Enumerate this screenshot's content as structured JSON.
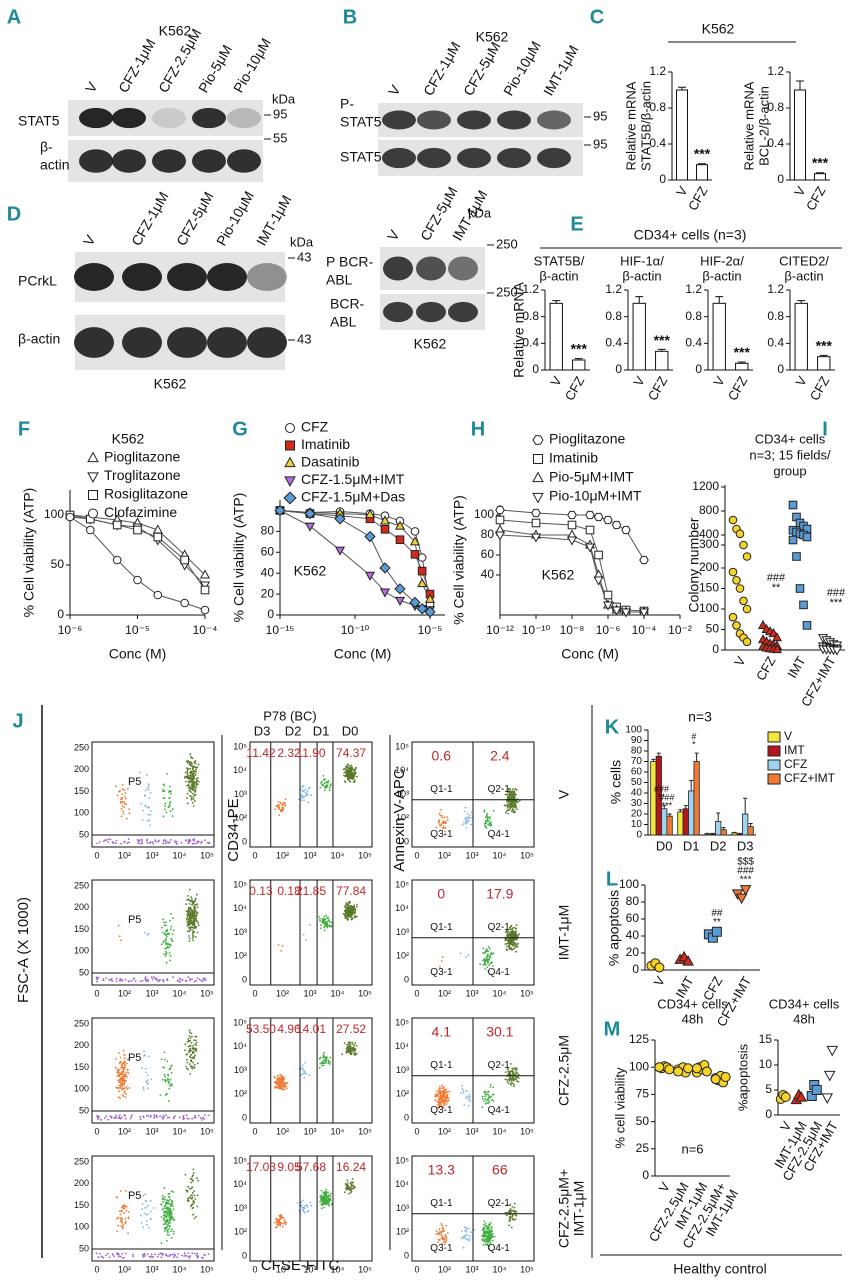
{
  "panels": {
    "A": {
      "letter": "A",
      "title": "K562",
      "lanes": [
        "V",
        "CFZ-1μM",
        "CFZ-2.5μM",
        "Pio-5μM",
        "Pio-10μM"
      ],
      "rows": [
        [
          "STAT5"
        ],
        [
          "β-",
          "actin"
        ]
      ],
      "unit": "kDa",
      "markers": [
        "95",
        "55"
      ]
    },
    "B": {
      "letter": "B",
      "title": "K562",
      "lanes": [
        "V",
        "CFZ-1μM",
        "CFZ-5μM",
        "Pio-10μM",
        "IMT-1μM"
      ],
      "rows": [
        [
          "P-",
          "STAT5"
        ],
        [
          "STAT5"
        ]
      ],
      "markers": [
        "95",
        "95"
      ]
    },
    "C": {
      "letter": "C",
      "title": "K562",
      "charts": [
        {
          "type": "bar",
          "ylabel": [
            "Relative mRNA",
            "STAT5B/β-actin"
          ],
          "categories": [
            "V",
            "CFZ"
          ],
          "values": [
            1.0,
            0.17
          ],
          "errors": [
            0.03,
            0.01
          ],
          "annotations": [
            "***"
          ],
          "ylim": [
            0,
            1.2
          ],
          "yticks": [
            0,
            0.4,
            0.8,
            1.2
          ]
        },
        {
          "type": "bar",
          "ylabel": [
            "Relative mRNA",
            "BCL-2/β-actin"
          ],
          "categories": [
            "V",
            "CFZ"
          ],
          "values": [
            1.0,
            0.07
          ],
          "errors": [
            0.1,
            0.01
          ],
          "annotations": [
            "***"
          ],
          "ylim": [
            0,
            1.2
          ],
          "yticks": [
            0,
            0.4,
            0.8,
            1.2
          ]
        }
      ]
    },
    "D": {
      "letter": "D",
      "cell": "K562",
      "lanes": [
        "V",
        "CFZ-1μM",
        "CFZ-5μM",
        "Pio-10μM",
        "IMT-1μM"
      ],
      "rows": [
        [
          "PCrkL"
        ],
        [
          "β-actin"
        ]
      ],
      "unit": "kDa",
      "markers": [
        "43",
        "43"
      ]
    },
    "D2": {
      "cell": "K562",
      "lanes": [
        "V",
        "CFZ-5μM",
        "IMT-1μM"
      ],
      "rows": [
        [
          "P BCR-",
          "ABL"
        ],
        [
          "BCR-",
          "ABL"
        ]
      ],
      "unit": "kDa",
      "markers": [
        "250",
        "250"
      ]
    },
    "E": {
      "letter": "E",
      "title": "CD34+ cells (n=3)",
      "ylabel": "Relative mRNA",
      "charts": [
        {
          "type": "bar",
          "title": [
            "STAT5B/",
            "β-actin"
          ],
          "categories": [
            "V",
            "CFZ"
          ],
          "values": [
            1.0,
            0.15
          ],
          "errors": [
            0.04,
            0.02
          ],
          "annotations": [
            "***"
          ],
          "ylim": [
            0,
            1.2
          ],
          "yticks": [
            0,
            0.4,
            0.8,
            1.2
          ]
        },
        {
          "type": "bar",
          "title": [
            "HIF-1α/",
            "β-actin"
          ],
          "categories": [
            "V",
            "CFZ"
          ],
          "values": [
            1.0,
            0.28
          ],
          "errors": [
            0.1,
            0.03
          ],
          "annotations": [
            "***"
          ],
          "ylim": [
            0,
            1.2
          ],
          "yticks": [
            0,
            0.4,
            0.8,
            1.2
          ]
        },
        {
          "type": "bar",
          "title": [
            "HIF-2α/",
            "β-actin"
          ],
          "categories": [
            "V",
            "CFZ"
          ],
          "values": [
            1.0,
            0.1
          ],
          "errors": [
            0.1,
            0.02
          ],
          "annotations": [
            "***"
          ],
          "ylim": [
            0,
            1.2
          ],
          "yticks": [
            0,
            0.4,
            0.8,
            1.2
          ]
        },
        {
          "type": "bar",
          "title": [
            "CITED2/",
            "β-actin"
          ],
          "categories": [
            "V",
            "CFZ"
          ],
          "values": [
            1.0,
            0.2
          ],
          "errors": [
            0.04,
            0.02
          ],
          "annotations": [
            "***"
          ],
          "ylim": [
            0,
            1.2
          ],
          "yticks": [
            0,
            0.4,
            0.8,
            1.2
          ]
        }
      ]
    },
    "F": {
      "letter": "F",
      "type": "line",
      "title": "K562",
      "xlabel": "Conc (M)",
      "ylabel": "% Cell viability (ATP)",
      "log_x": true,
      "x": [
        1e-06,
        2e-06,
        5e-06,
        1e-05,
        2e-05,
        5e-05,
        0.0001
      ],
      "xlim": [
        1e-06,
        0.0001
      ],
      "xticks": [
        {
          "value": 1e-06,
          "label": "10⁻⁶"
        },
        {
          "value": 1e-05,
          "label": "10⁻⁵"
        },
        {
          "value": 0.0001,
          "label": "10⁻⁴"
        }
      ],
      "ylim": [
        0,
        125
      ],
      "yticks": [
        0,
        50,
        100
      ],
      "series": [
        {
          "name": "Pioglitazone",
          "marker": "triangle",
          "color": "#ffffff",
          "values": [
            100,
            98,
            95,
            92,
            85,
            60,
            40
          ]
        },
        {
          "name": "Troglitazone",
          "marker": "tri-down",
          "color": "#ffffff",
          "values": [
            98,
            96,
            90,
            88,
            75,
            50,
            30
          ]
        },
        {
          "name": "Rosiglitazone",
          "marker": "square",
          "color": "#ffffff",
          "values": [
            100,
            96,
            90,
            85,
            78,
            55,
            25
          ]
        },
        {
          "name": "Clofazimine",
          "marker": "circle",
          "color": "#ffffff",
          "values": [
            98,
            85,
            55,
            35,
            20,
            12,
            5
          ]
        }
      ]
    },
    "G": {
      "letter": "G",
      "type": "line",
      "note": "K562",
      "xlabel": "Conc (M)",
      "ylabel": "% Cell viability (ATP)",
      "log_x": true,
      "x": [
        1e-15,
        1e-13,
        1e-11,
        1e-09,
        1e-08,
        1e-07,
        1e-06,
        3e-06,
        1e-05
      ],
      "xlim": [
        1e-15,
        0.0001
      ],
      "xticks": [
        {
          "value": 1e-15,
          "label": "10⁻¹⁵"
        },
        {
          "value": 1e-10,
          "label": "10⁻¹⁰"
        },
        {
          "value": 1e-05,
          "label": "10⁻⁵"
        }
      ],
      "ylim": [
        0,
        110
      ],
      "yticks": [
        0,
        20,
        40,
        60,
        80
      ],
      "series": [
        {
          "name": "CFZ",
          "marker": "circle",
          "color": "#ffffff",
          "values": [
            100,
            98,
            99,
            97,
            95,
            90,
            80,
            55,
            10
          ]
        },
        {
          "name": "Imatinib",
          "marker": "square",
          "color": "#d42a1e",
          "values": [
            100,
            97,
            95,
            92,
            82,
            72,
            58,
            42,
            20
          ]
        },
        {
          "name": "Dasatinib",
          "marker": "triangle",
          "color": "#e8d33a",
          "values": [
            100,
            98,
            97,
            96,
            90,
            85,
            70,
            30,
            15
          ]
        },
        {
          "name": "CFZ-1.5μM+IMT",
          "marker": "tri-down",
          "color": "#b46fd8",
          "values": [
            100,
            85,
            62,
            38,
            22,
            14,
            9,
            6,
            5
          ]
        },
        {
          "name": "CFZ-1.5μM+Das",
          "marker": "diamond",
          "color": "#5b9bd5",
          "values": [
            100,
            97,
            92,
            75,
            45,
            25,
            12,
            6,
            3
          ]
        }
      ]
    },
    "H": {
      "letter": "H",
      "type": "line",
      "note": "K562",
      "xlabel": "Conc (M)",
      "ylabel": "% Cell viability (ATP)",
      "log_x": true,
      "x": [
        1e-12,
        1e-10,
        1e-08,
        1e-07,
        3e-07,
        1e-06,
        3e-06,
        1e-05,
        0.0001
      ],
      "xlim": [
        1e-12,
        0.01
      ],
      "xticks": [
        {
          "value": 1e-12,
          "label": "10⁻¹²"
        },
        {
          "value": 1e-10,
          "label": "10⁻¹⁰"
        },
        {
          "value": 1e-08,
          "label": "10⁻⁸"
        },
        {
          "value": 1e-06,
          "label": "10⁻⁶"
        },
        {
          "value": 0.0001,
          "label": "10⁻⁴"
        },
        {
          "value": 0.01,
          "label": "10⁻²"
        }
      ],
      "ylim": [
        0,
        110
      ],
      "yticks": [
        40,
        60,
        80,
        100
      ],
      "series": [
        {
          "name": "Pioglitazone",
          "marker": "hexagon",
          "color": "#ffffff",
          "values": [
            105,
            102,
            100,
            100,
            98,
            95,
            90,
            85,
            55
          ]
        },
        {
          "name": "Imatinib",
          "marker": "square",
          "color": "#ffffff",
          "values": [
            95,
            92,
            90,
            85,
            60,
            20,
            8,
            5,
            4
          ]
        },
        {
          "name": "Pio-5μM+IMT",
          "marker": "triangle",
          "color": "#ffffff",
          "values": [
            85,
            80,
            80,
            70,
            40,
            10,
            5,
            3,
            3
          ]
        },
        {
          "name": "Pio-10μM+IMT",
          "marker": "tri-down",
          "color": "#ffffff",
          "values": [
            80,
            78,
            75,
            68,
            35,
            10,
            5,
            3,
            3
          ]
        }
      ]
    },
    "I": {
      "letter": "I",
      "type": "dot",
      "title": [
        "CD34+ cells",
        "n=3; 15 fields/",
        "group"
      ],
      "ylabel": "Colony number",
      "categories": [
        "V",
        "CFZ",
        "IMT",
        "CFZ+IMT"
      ],
      "colors": [
        "#f5d327",
        "#d42a1e",
        "#5b9bd5",
        "#ffffff"
      ],
      "shapes": [
        "circle",
        "triangle",
        "square",
        "tri-down"
      ],
      "ylim": [
        0,
        1200
      ],
      "yticks": [
        0,
        50,
        100,
        150,
        200,
        300,
        400,
        800,
        1200
      ],
      "points": [
        [
          650,
          500,
          420,
          300,
          250,
          190,
          170,
          150,
          120,
          100,
          80,
          60,
          40,
          30,
          20
        ],
        [
          60,
          50,
          45,
          40,
          30,
          25,
          20,
          15,
          12,
          10,
          8,
          5,
          3,
          2,
          1
        ],
        [
          900,
          700,
          600,
          550,
          500,
          480,
          450,
          420,
          400,
          380,
          350,
          250,
          150,
          110,
          60
        ],
        [
          30,
          25,
          20,
          15,
          12,
          10,
          8,
          6,
          5,
          4,
          3,
          2,
          2,
          1,
          0
        ]
      ],
      "annotations": [
        "###",
        "**",
        "###",
        "***"
      ]
    },
    "J": {
      "letter": "J",
      "title": "P78 (BC)",
      "gates": [
        "D3",
        "D2",
        "D1",
        "D0"
      ],
      "fsc_label": "FSC-A (X 1000)",
      "cd34_label": "CD34-PE",
      "annexin_label": "Annexin V-APC",
      "cfse_label": "CFSE-FITC",
      "gate_label": "P5",
      "quadrant_labels": [
        "Q1-1",
        "Q2-1",
        "Q3-1",
        "Q4-1"
      ],
      "fsc_ticks": [
        "50",
        "100",
        "150",
        "200",
        "250"
      ],
      "log_ticks": [
        "0",
        "10²",
        "10³",
        "10⁴",
        "10⁵"
      ],
      "rows": [
        {
          "label": [
            "V"
          ],
          "gate_values": [
            "11.42",
            "2.32",
            "11.90",
            "74.37"
          ],
          "quadrant_values": [
            "0.6",
            "2.4"
          ]
        },
        {
          "label": [
            "IMT-1μM"
          ],
          "gate_values": [
            "0.13",
            "0.18",
            "21.85",
            "77.84"
          ],
          "quadrant_values": [
            "0",
            "17.9"
          ]
        },
        {
          "label": [
            "CFZ-2.5μM"
          ],
          "gate_values": [
            "53.50",
            "4.96",
            "14.01",
            "27.52"
          ],
          "quadrant_values": [
            "4.1",
            "30.1"
          ]
        },
        {
          "label": [
            "CFZ-2.5μM+",
            "IMT-1μM"
          ],
          "gate_values": [
            "17.03",
            "9.05",
            "57.68",
            "16.24"
          ],
          "quadrant_values": [
            "13.3",
            "66"
          ]
        }
      ]
    },
    "K": {
      "letter": "K",
      "type": "bar",
      "note": "n=3",
      "ylabel": "% cells",
      "categories": [
        "D0",
        "D1",
        "D2",
        "D3"
      ],
      "ylim": [
        0,
        100
      ],
      "yticks": [
        0,
        10,
        20,
        30,
        40,
        50,
        60,
        70,
        80,
        90,
        100
      ],
      "series": [
        {
          "name": "V",
          "color": "#f5e63c",
          "values": [
            70,
            22,
            1,
            2
          ],
          "errors": [
            2,
            2,
            0.5,
            0.5
          ]
        },
        {
          "name": "IMT",
          "color": "#b3161c",
          "values": [
            75,
            25,
            1,
            1
          ],
          "errors": [
            3,
            3,
            0.5,
            0.5
          ]
        },
        {
          "name": "CFZ",
          "color": "#9fd3ef",
          "values": [
            25,
            42,
            13,
            20
          ],
          "errors": [
            3,
            10,
            8,
            15
          ]
        },
        {
          "name": "CFZ+IMT",
          "color": "#f07a33",
          "values": [
            18,
            70,
            5,
            8
          ],
          "errors": [
            2,
            8,
            2,
            3
          ]
        }
      ],
      "annotations": [
        "###",
        "**",
        "###",
        "***",
        "#",
        "*"
      ]
    },
    "L": {
      "letter": "L",
      "type": "dot",
      "ylabel": "% apoptosis",
      "categories": [
        "V",
        "IMT",
        "CFZ",
        "CFZ+IMT"
      ],
      "colors": [
        "#f5d327",
        "#d42a1e",
        "#5b9bd5",
        "#f07a33"
      ],
      "shapes": [
        "circle",
        "triangle",
        "square",
        "tri-down"
      ],
      "ylim": [
        0,
        100
      ],
      "yticks": [
        0,
        20,
        40,
        60,
        80,
        100
      ],
      "points": [
        [
          5,
          8,
          3
        ],
        [
          12,
          15,
          10
        ],
        [
          42,
          38,
          45
        ],
        [
          90,
          85,
          95
        ]
      ],
      "annotations": [
        "##",
        "**",
        "$$$",
        "###",
        "***"
      ]
    },
    "M": {
      "letter": "M",
      "footer": "Healthy control",
      "charts": [
        {
          "type": "dot",
          "title": [
            "CD34+ cells",
            "48h"
          ],
          "ylabel": "% cell viability",
          "note": "n=6",
          "categories": [
            [
              "V"
            ],
            [
              "CFZ-2.5μM"
            ],
            [
              "IMT-1μM"
            ],
            [
              "CFZ-2.5μM+",
              "IMT-1μM"
            ]
          ],
          "colors": [
            "#f5d327",
            "#f5d327",
            "#f5d327",
            "#f5d327"
          ],
          "shapes": [
            "circle",
            "circle",
            "circle",
            "circle"
          ],
          "ylim": [
            0,
            125
          ],
          "yticks": [
            0,
            25,
            50,
            75,
            100,
            125
          ],
          "points": [
            [
              100,
              99,
              101,
              100,
              98,
              100
            ],
            [
              98,
              97,
              100,
              95,
              99,
              96
            ],
            [
              95,
              100,
              98,
              102,
              96,
              99
            ],
            [
              90,
              88,
              92,
              86,
              91,
              89
            ]
          ]
        },
        {
          "type": "dot",
          "title": [
            "CD34+ cells",
            "48h"
          ],
          "ylabel": "%apoptosis",
          "categories": [
            [
              "V"
            ],
            [
              "IMT-1μM"
            ],
            [
              "CFZ-2.5μM"
            ],
            [
              "CFZ+IMT"
            ]
          ],
          "colors": [
            "#f5d327",
            "#d42a1e",
            "#5b9bd5",
            "#ffffff"
          ],
          "shapes": [
            "circle",
            "triangle",
            "square",
            "tri-down"
          ],
          "ylim": [
            0,
            15
          ],
          "yticks": [
            0,
            5,
            10,
            15
          ],
          "points": [
            [
              3.2,
              4,
              3.6
            ],
            [
              3,
              4,
              3.5
            ],
            [
              3.8,
              6,
              5
            ],
            [
              3.5,
              8,
              13
            ]
          ]
        }
      ]
    }
  }
}
